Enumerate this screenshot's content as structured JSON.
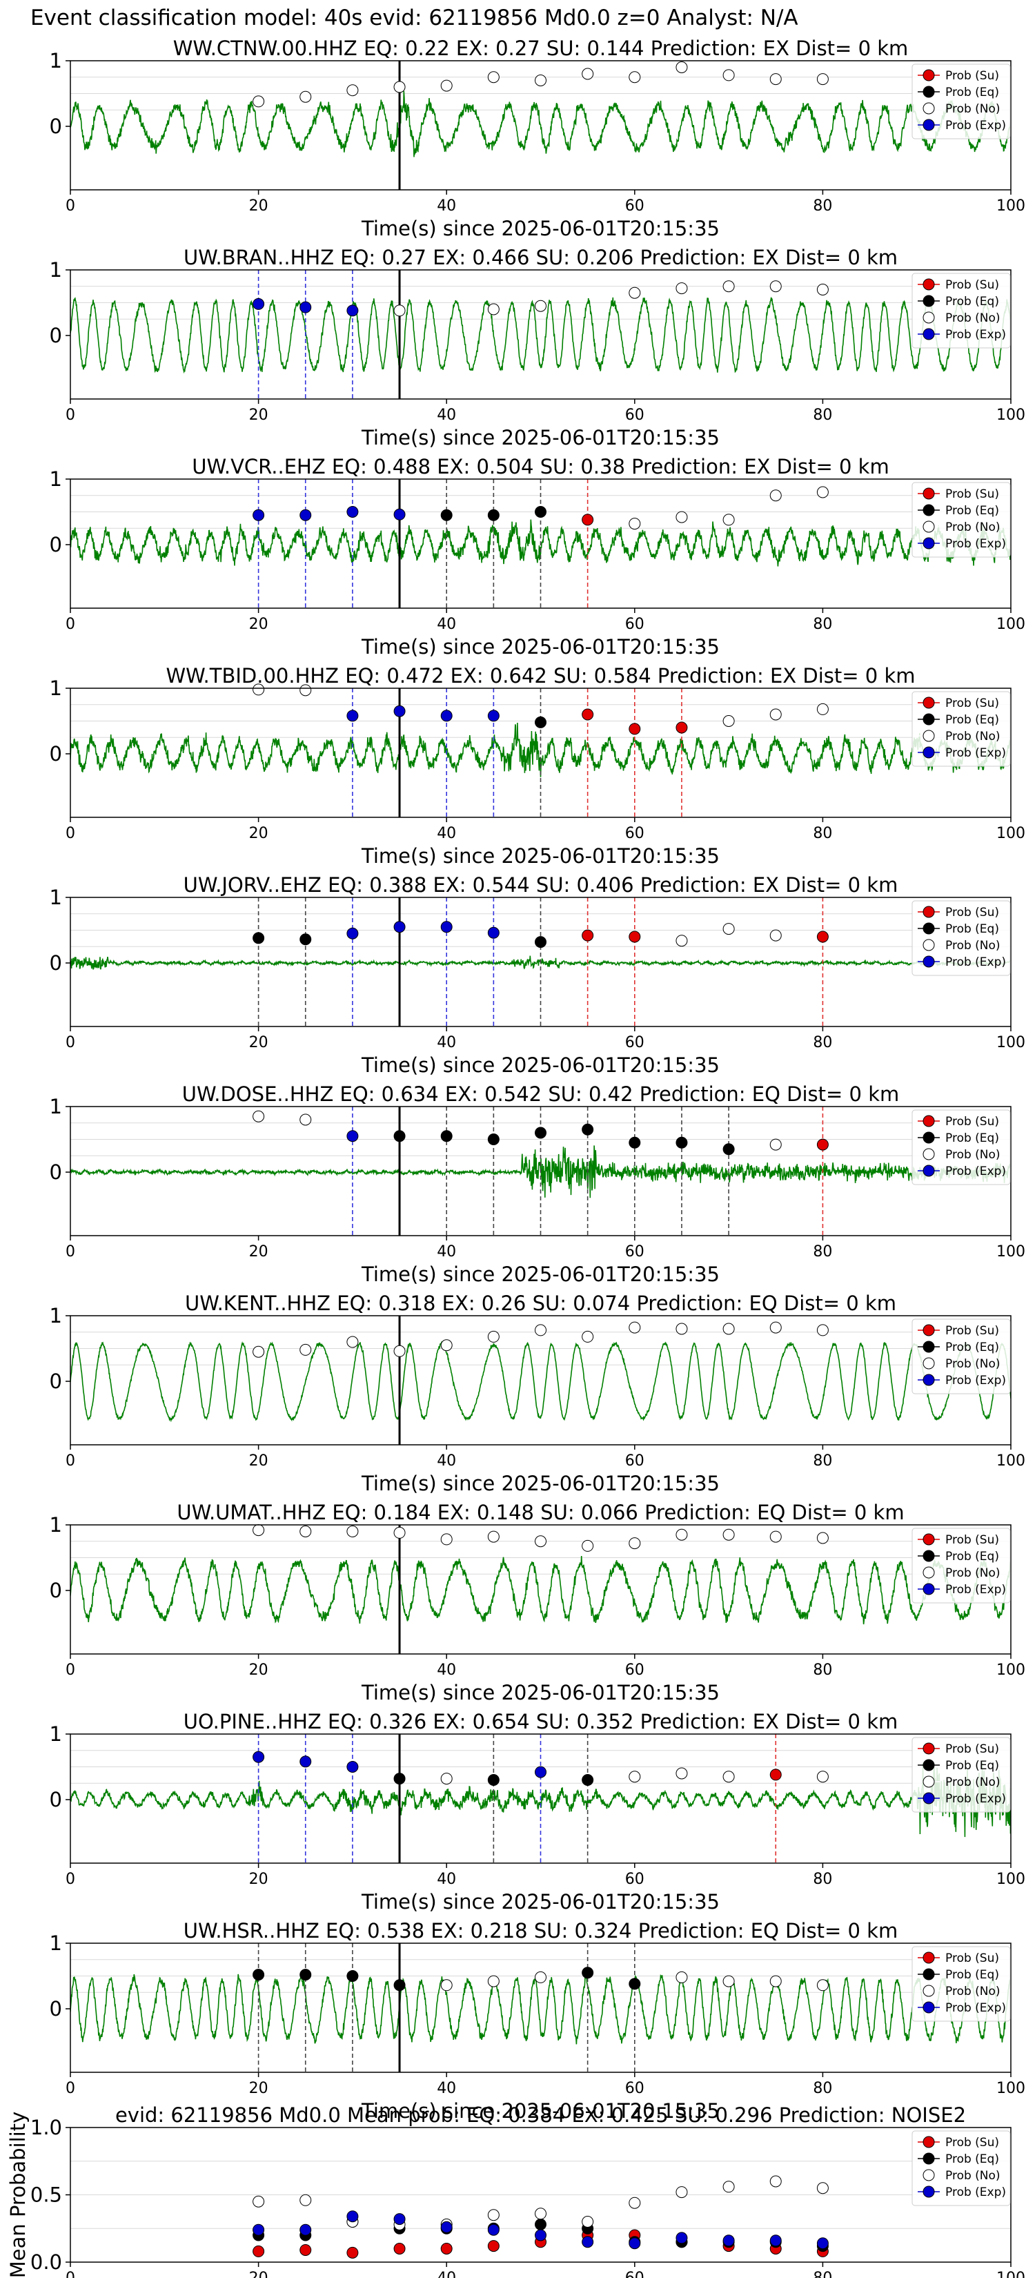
{
  "figure_title": "Event classification model: 40s evid: 62119856 Md0.0 z=0 Analyst: N/A",
  "xlabel": "Time(s) since 2025-06-01T20:15:35",
  "xticks": [
    0,
    20,
    40,
    60,
    80,
    100
  ],
  "legend_labels": [
    "Prob (Su)",
    "Prob (Eq)",
    "Prob (No)",
    "Prob (Exp)"
  ],
  "colors": {
    "su": "#e00000",
    "eq": "#000000",
    "no": "#ffffff",
    "exp": "#0000cc",
    "waveform": "#008000",
    "grid": "#d9d9d9"
  },
  "chart_data": [
    {
      "type": "line",
      "station": "WW.CTNW.00.HHZ",
      "title": "WW.CTNW.00.HHZ   EQ: 0.22  EX: 0.27  SU: 0.144   Prediction: EX    Dist= 0 km",
      "xlim": [
        0,
        100
      ],
      "yticks": [
        1,
        0
      ],
      "event_line_x": 35,
      "marker_x": [],
      "points": [
        {
          "t": 20,
          "c": "no",
          "y": 0.38
        },
        {
          "t": 25,
          "c": "no",
          "y": 0.45
        },
        {
          "t": 30,
          "c": "no",
          "y": 0.55
        },
        {
          "t": 35,
          "c": "no",
          "y": 0.6
        },
        {
          "t": 40,
          "c": "no",
          "y": 0.62
        },
        {
          "t": 45,
          "c": "no",
          "y": 0.75
        },
        {
          "t": 50,
          "c": "no",
          "y": 0.7
        },
        {
          "t": 55,
          "c": "no",
          "y": 0.8
        },
        {
          "t": 60,
          "c": "no",
          "y": 0.75
        },
        {
          "t": 65,
          "c": "no",
          "y": 0.9
        },
        {
          "t": 70,
          "c": "no",
          "y": 0.78
        },
        {
          "t": 75,
          "c": "no",
          "y": 0.72
        },
        {
          "t": 80,
          "c": "no",
          "y": 0.72
        }
      ]
    },
    {
      "type": "line",
      "station": "UW.BRAN..HHZ",
      "title": "UW.BRAN..HHZ   EQ: 0.27  EX: 0.466  SU: 0.206   Prediction: EX    Dist= 0 km",
      "xlim": [
        0,
        100
      ],
      "yticks": [
        1,
        0
      ],
      "event_line_x": 35,
      "marker_x": [
        {
          "t": 20,
          "c": "exp"
        },
        {
          "t": 25,
          "c": "exp"
        },
        {
          "t": 30,
          "c": "exp"
        }
      ],
      "points": [
        {
          "t": 20,
          "c": "exp",
          "y": 0.48
        },
        {
          "t": 25,
          "c": "exp",
          "y": 0.43
        },
        {
          "t": 30,
          "c": "exp",
          "y": 0.38
        },
        {
          "t": 35,
          "c": "no",
          "y": 0.38
        },
        {
          "t": 45,
          "c": "no",
          "y": 0.4
        },
        {
          "t": 50,
          "c": "no",
          "y": 0.45
        },
        {
          "t": 60,
          "c": "no",
          "y": 0.65
        },
        {
          "t": 65,
          "c": "no",
          "y": 0.72
        },
        {
          "t": 70,
          "c": "no",
          "y": 0.75
        },
        {
          "t": 75,
          "c": "no",
          "y": 0.75
        },
        {
          "t": 80,
          "c": "no",
          "y": 0.7
        }
      ]
    },
    {
      "type": "line",
      "station": "UW.VCR..EHZ",
      "title": "UW.VCR..EHZ   EQ: 0.488  EX: 0.504  SU: 0.38   Prediction: EX    Dist= 0 km",
      "xlim": [
        0,
        100
      ],
      "yticks": [
        1,
        0
      ],
      "event_line_x": 35,
      "marker_x": [
        {
          "t": 20,
          "c": "exp"
        },
        {
          "t": 25,
          "c": "exp"
        },
        {
          "t": 30,
          "c": "exp"
        },
        {
          "t": 40,
          "c": "eq"
        },
        {
          "t": 45,
          "c": "eq"
        },
        {
          "t": 50,
          "c": "eq"
        },
        {
          "t": 55,
          "c": "su"
        }
      ],
      "points": [
        {
          "t": 20,
          "c": "exp",
          "y": 0.45
        },
        {
          "t": 25,
          "c": "exp",
          "y": 0.45
        },
        {
          "t": 30,
          "c": "exp",
          "y": 0.5
        },
        {
          "t": 35,
          "c": "exp",
          "y": 0.46
        },
        {
          "t": 40,
          "c": "eq",
          "y": 0.45
        },
        {
          "t": 45,
          "c": "eq",
          "y": 0.45
        },
        {
          "t": 50,
          "c": "eq",
          "y": 0.5
        },
        {
          "t": 55,
          "c": "su",
          "y": 0.38
        },
        {
          "t": 60,
          "c": "no",
          "y": 0.32
        },
        {
          "t": 65,
          "c": "no",
          "y": 0.42
        },
        {
          "t": 70,
          "c": "no",
          "y": 0.38
        },
        {
          "t": 75,
          "c": "no",
          "y": 0.75
        },
        {
          "t": 80,
          "c": "no",
          "y": 0.8
        }
      ]
    },
    {
      "type": "line",
      "station": "WW.TBID.00.HHZ",
      "title": "WW.TBID.00.HHZ   EQ: 0.472  EX: 0.642  SU: 0.584   Prediction: EX    Dist= 0 km",
      "xlim": [
        0,
        100
      ],
      "yticks": [
        1,
        0
      ],
      "event_line_x": 35,
      "marker_x": [
        {
          "t": 30,
          "c": "exp"
        },
        {
          "t": 40,
          "c": "exp"
        },
        {
          "t": 45,
          "c": "exp"
        },
        {
          "t": 50,
          "c": "eq"
        },
        {
          "t": 55,
          "c": "su"
        },
        {
          "t": 60,
          "c": "su"
        },
        {
          "t": 65,
          "c": "su"
        }
      ],
      "points": [
        {
          "t": 20,
          "c": "no",
          "y": 0.98
        },
        {
          "t": 25,
          "c": "no",
          "y": 0.97
        },
        {
          "t": 30,
          "c": "exp",
          "y": 0.58
        },
        {
          "t": 35,
          "c": "exp",
          "y": 0.65
        },
        {
          "t": 40,
          "c": "exp",
          "y": 0.58
        },
        {
          "t": 45,
          "c": "exp",
          "y": 0.58
        },
        {
          "t": 50,
          "c": "eq",
          "y": 0.48
        },
        {
          "t": 55,
          "c": "su",
          "y": 0.6
        },
        {
          "t": 60,
          "c": "su",
          "y": 0.38
        },
        {
          "t": 65,
          "c": "su",
          "y": 0.4
        },
        {
          "t": 70,
          "c": "no",
          "y": 0.5
        },
        {
          "t": 75,
          "c": "no",
          "y": 0.6
        },
        {
          "t": 80,
          "c": "no",
          "y": 0.68
        }
      ]
    },
    {
      "type": "line",
      "station": "UW.JORV..EHZ",
      "title": "UW.JORV..EHZ   EQ: 0.388  EX: 0.544  SU: 0.406   Prediction: EX    Dist= 0 km",
      "xlim": [
        0,
        100
      ],
      "yticks": [
        1,
        0
      ],
      "event_line_x": 35,
      "marker_x": [
        {
          "t": 20,
          "c": "eq"
        },
        {
          "t": 25,
          "c": "eq"
        },
        {
          "t": 30,
          "c": "exp"
        },
        {
          "t": 40,
          "c": "exp"
        },
        {
          "t": 45,
          "c": "exp"
        },
        {
          "t": 50,
          "c": "eq"
        },
        {
          "t": 55,
          "c": "su"
        },
        {
          "t": 60,
          "c": "su"
        },
        {
          "t": 80,
          "c": "su"
        }
      ],
      "points": [
        {
          "t": 20,
          "c": "eq",
          "y": 0.38
        },
        {
          "t": 25,
          "c": "eq",
          "y": 0.36
        },
        {
          "t": 30,
          "c": "exp",
          "y": 0.45
        },
        {
          "t": 35,
          "c": "exp",
          "y": 0.55
        },
        {
          "t": 40,
          "c": "exp",
          "y": 0.55
        },
        {
          "t": 45,
          "c": "exp",
          "y": 0.46
        },
        {
          "t": 50,
          "c": "eq",
          "y": 0.32
        },
        {
          "t": 55,
          "c": "su",
          "y": 0.42
        },
        {
          "t": 60,
          "c": "su",
          "y": 0.4
        },
        {
          "t": 65,
          "c": "no",
          "y": 0.34
        },
        {
          "t": 70,
          "c": "no",
          "y": 0.52
        },
        {
          "t": 75,
          "c": "no",
          "y": 0.42
        },
        {
          "t": 80,
          "c": "su",
          "y": 0.4
        }
      ]
    },
    {
      "type": "line",
      "station": "UW.DOSE..HHZ",
      "title": "UW.DOSE..HHZ   EQ: 0.634  EX: 0.542  SU: 0.42   Prediction: EQ    Dist= 0 km",
      "xlim": [
        0,
        100
      ],
      "yticks": [
        1,
        0
      ],
      "event_line_x": 35,
      "marker_x": [
        {
          "t": 30,
          "c": "exp"
        },
        {
          "t": 40,
          "c": "eq"
        },
        {
          "t": 45,
          "c": "eq"
        },
        {
          "t": 50,
          "c": "eq"
        },
        {
          "t": 55,
          "c": "eq"
        },
        {
          "t": 60,
          "c": "eq"
        },
        {
          "t": 65,
          "c": "eq"
        },
        {
          "t": 70,
          "c": "eq"
        },
        {
          "t": 80,
          "c": "su"
        }
      ],
      "points": [
        {
          "t": 20,
          "c": "no",
          "y": 0.85
        },
        {
          "t": 25,
          "c": "no",
          "y": 0.8
        },
        {
          "t": 30,
          "c": "exp",
          "y": 0.55
        },
        {
          "t": 35,
          "c": "eq",
          "y": 0.55
        },
        {
          "t": 40,
          "c": "eq",
          "y": 0.55
        },
        {
          "t": 45,
          "c": "eq",
          "y": 0.5
        },
        {
          "t": 50,
          "c": "eq",
          "y": 0.6
        },
        {
          "t": 55,
          "c": "eq",
          "y": 0.65
        },
        {
          "t": 60,
          "c": "eq",
          "y": 0.45
        },
        {
          "t": 65,
          "c": "eq",
          "y": 0.45
        },
        {
          "t": 70,
          "c": "eq",
          "y": 0.35
        },
        {
          "t": 75,
          "c": "no",
          "y": 0.42
        },
        {
          "t": 80,
          "c": "su",
          "y": 0.42
        }
      ]
    },
    {
      "type": "line",
      "station": "UW.KENT..HHZ",
      "title": "UW.KENT..HHZ   EQ: 0.318  EX: 0.26  SU: 0.074   Prediction: EQ    Dist= 0 km",
      "xlim": [
        0,
        100
      ],
      "yticks": [
        1,
        0
      ],
      "event_line_x": 35,
      "marker_x": [],
      "points": [
        {
          "t": 20,
          "c": "no",
          "y": 0.45
        },
        {
          "t": 25,
          "c": "no",
          "y": 0.48
        },
        {
          "t": 30,
          "c": "no",
          "y": 0.6
        },
        {
          "t": 35,
          "c": "no",
          "y": 0.46
        },
        {
          "t": 40,
          "c": "no",
          "y": 0.55
        },
        {
          "t": 45,
          "c": "no",
          "y": 0.68
        },
        {
          "t": 50,
          "c": "no",
          "y": 0.78
        },
        {
          "t": 55,
          "c": "no",
          "y": 0.68
        },
        {
          "t": 60,
          "c": "no",
          "y": 0.82
        },
        {
          "t": 65,
          "c": "no",
          "y": 0.8
        },
        {
          "t": 70,
          "c": "no",
          "y": 0.8
        },
        {
          "t": 75,
          "c": "no",
          "y": 0.82
        },
        {
          "t": 80,
          "c": "no",
          "y": 0.78
        }
      ]
    },
    {
      "type": "line",
      "station": "UW.UMAT..HHZ",
      "title": "UW.UMAT..HHZ   EQ: 0.184  EX: 0.148  SU: 0.066   Prediction: EQ    Dist= 0 km",
      "xlim": [
        0,
        100
      ],
      "yticks": [
        1,
        0
      ],
      "event_line_x": 35,
      "marker_x": [],
      "points": [
        {
          "t": 20,
          "c": "no",
          "y": 0.92
        },
        {
          "t": 25,
          "c": "no",
          "y": 0.9
        },
        {
          "t": 30,
          "c": "no",
          "y": 0.9
        },
        {
          "t": 35,
          "c": "no",
          "y": 0.88
        },
        {
          "t": 40,
          "c": "no",
          "y": 0.78
        },
        {
          "t": 45,
          "c": "no",
          "y": 0.82
        },
        {
          "t": 50,
          "c": "no",
          "y": 0.75
        },
        {
          "t": 55,
          "c": "no",
          "y": 0.68
        },
        {
          "t": 60,
          "c": "no",
          "y": 0.72
        },
        {
          "t": 65,
          "c": "no",
          "y": 0.85
        },
        {
          "t": 70,
          "c": "no",
          "y": 0.85
        },
        {
          "t": 75,
          "c": "no",
          "y": 0.82
        },
        {
          "t": 80,
          "c": "no",
          "y": 0.8
        }
      ]
    },
    {
      "type": "line",
      "station": "UO.PINE..HHZ",
      "title": "UO.PINE..HHZ   EQ: 0.326  EX: 0.654  SU: 0.352   Prediction: EX    Dist= 0 km",
      "xlim": [
        0,
        100
      ],
      "yticks": [
        1,
        0
      ],
      "event_line_x": 35,
      "marker_x": [
        {
          "t": 20,
          "c": "exp"
        },
        {
          "t": 25,
          "c": "exp"
        },
        {
          "t": 30,
          "c": "exp"
        },
        {
          "t": 45,
          "c": "eq"
        },
        {
          "t": 50,
          "c": "exp"
        },
        {
          "t": 55,
          "c": "eq"
        },
        {
          "t": 75,
          "c": "su"
        }
      ],
      "points": [
        {
          "t": 20,
          "c": "exp",
          "y": 0.65
        },
        {
          "t": 25,
          "c": "exp",
          "y": 0.58
        },
        {
          "t": 30,
          "c": "exp",
          "y": 0.5
        },
        {
          "t": 35,
          "c": "eq",
          "y": 0.32
        },
        {
          "t": 40,
          "c": "no",
          "y": 0.32
        },
        {
          "t": 45,
          "c": "eq",
          "y": 0.3
        },
        {
          "t": 50,
          "c": "exp",
          "y": 0.42
        },
        {
          "t": 55,
          "c": "eq",
          "y": 0.3
        },
        {
          "t": 60,
          "c": "no",
          "y": 0.35
        },
        {
          "t": 65,
          "c": "no",
          "y": 0.4
        },
        {
          "t": 70,
          "c": "no",
          "y": 0.35
        },
        {
          "t": 75,
          "c": "su",
          "y": 0.38
        },
        {
          "t": 80,
          "c": "no",
          "y": 0.35
        }
      ]
    },
    {
      "type": "line",
      "station": "UW.HSR..HHZ",
      "title": "UW.HSR..HHZ   EQ: 0.538  EX: 0.218  SU: 0.324   Prediction: EQ    Dist= 0 km",
      "xlim": [
        0,
        100
      ],
      "yticks": [
        1,
        0
      ],
      "event_line_x": 35,
      "marker_x": [
        {
          "t": 20,
          "c": "eq"
        },
        {
          "t": 25,
          "c": "eq"
        },
        {
          "t": 30,
          "c": "eq"
        },
        {
          "t": 55,
          "c": "eq"
        },
        {
          "t": 60,
          "c": "eq"
        }
      ],
      "points": [
        {
          "t": 20,
          "c": "eq",
          "y": 0.52
        },
        {
          "t": 25,
          "c": "eq",
          "y": 0.52
        },
        {
          "t": 30,
          "c": "eq",
          "y": 0.5
        },
        {
          "t": 35,
          "c": "eq",
          "y": 0.36
        },
        {
          "t": 40,
          "c": "no",
          "y": 0.36
        },
        {
          "t": 45,
          "c": "no",
          "y": 0.42
        },
        {
          "t": 50,
          "c": "no",
          "y": 0.48
        },
        {
          "t": 55,
          "c": "eq",
          "y": 0.55
        },
        {
          "t": 60,
          "c": "eq",
          "y": 0.38
        },
        {
          "t": 65,
          "c": "no",
          "y": 0.48
        },
        {
          "t": 70,
          "c": "no",
          "y": 0.42
        },
        {
          "t": 75,
          "c": "no",
          "y": 0.42
        },
        {
          "t": 80,
          "c": "no",
          "y": 0.36
        }
      ]
    },
    {
      "type": "scatter",
      "station": "mean",
      "title": "evid: 62119856  Md0.0   Mean prob:   EQ: 0.384  EX: 0.425  SU: 0.296   Prediction: NOISE2",
      "ylabel": "Mean Probability",
      "xlim": [
        0,
        100
      ],
      "ylim": [
        0,
        1
      ],
      "yticks": [
        1.0,
        0.5,
        0.0
      ],
      "yticklabels": [
        "1.0",
        "0.5",
        "0.0"
      ],
      "x": [
        20,
        25,
        30,
        35,
        40,
        45,
        50,
        55,
        60,
        65,
        70,
        75,
        80
      ],
      "series": [
        {
          "name": "Prob (Su)",
          "c": "su",
          "values": [
            0.08,
            0.09,
            0.07,
            0.1,
            0.1,
            0.12,
            0.15,
            0.2,
            0.2,
            0.15,
            0.12,
            0.1,
            0.08
          ]
        },
        {
          "name": "Prob (Eq)",
          "c": "eq",
          "values": [
            0.2,
            0.2,
            0.3,
            0.25,
            0.25,
            0.25,
            0.28,
            0.25,
            0.15,
            0.15,
            0.15,
            0.15,
            0.12
          ]
        },
        {
          "name": "Prob (No)",
          "c": "no",
          "values": [
            0.45,
            0.46,
            0.3,
            0.28,
            0.28,
            0.35,
            0.36,
            0.3,
            0.44,
            0.52,
            0.56,
            0.6,
            0.55
          ]
        },
        {
          "name": "Prob (Exp)",
          "c": "exp",
          "values": [
            0.24,
            0.24,
            0.34,
            0.32,
            0.26,
            0.24,
            0.2,
            0.15,
            0.14,
            0.18,
            0.16,
            0.16,
            0.14
          ]
        }
      ]
    }
  ]
}
